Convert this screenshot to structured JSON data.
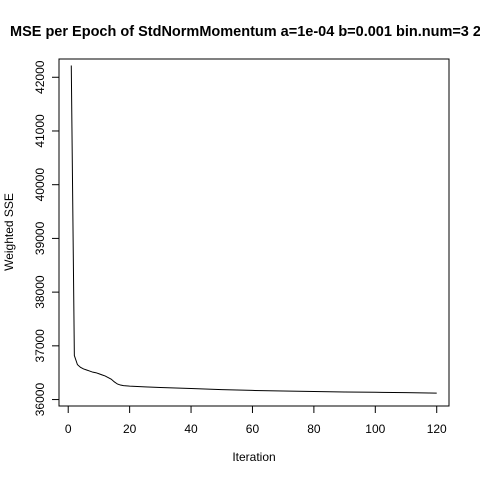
{
  "chart_data": {
    "type": "line",
    "title": "MSE per Epoch of StdNormMomentum a=1e-04 b=0.001 bin.num=3 2",
    "xlabel": "Iteration",
    "ylabel": "Weighted SSE",
    "xlim": [
      -3,
      124
    ],
    "ylim": [
      35880,
      42340
    ],
    "xticks": [
      0,
      20,
      40,
      60,
      80,
      100,
      120
    ],
    "yticks": [
      36000,
      37000,
      38000,
      39000,
      40000,
      41000,
      42000
    ],
    "grid": false,
    "series": [
      {
        "color": "#000000",
        "x": [
          1,
          2,
          3,
          4,
          5,
          6,
          7,
          8,
          9,
          10,
          11,
          12,
          13,
          14,
          15,
          16,
          17,
          18,
          19,
          20,
          25,
          30,
          35,
          40,
          50,
          60,
          70,
          80,
          90,
          100,
          110,
          120
        ],
        "y": [
          42220,
          36820,
          36650,
          36600,
          36570,
          36550,
          36530,
          36510,
          36500,
          36480,
          36460,
          36440,
          36410,
          36380,
          36330,
          36290,
          36270,
          36260,
          36255,
          36250,
          36235,
          36225,
          36215,
          36205,
          36185,
          36170,
          36160,
          36150,
          36140,
          36135,
          36130,
          36120
        ]
      }
    ]
  }
}
